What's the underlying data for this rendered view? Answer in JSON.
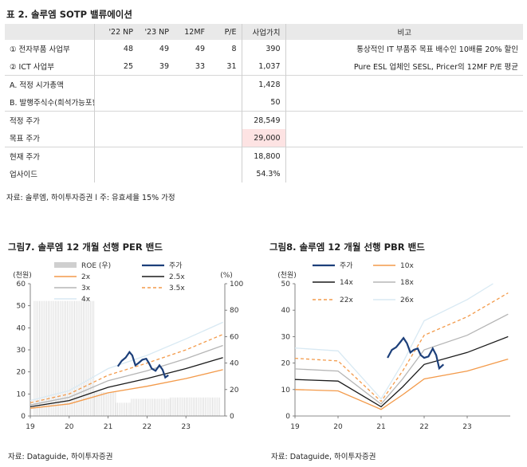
{
  "table": {
    "title": "표 2. 솔루엠 SOTP 밸류에이션",
    "headers": [
      "",
      "'22 NP",
      "'23 NP",
      "12MF",
      "P/E",
      "사업가치",
      "비고"
    ],
    "rows": [
      {
        "label": "① 전자부품 사업부",
        "np22": "48",
        "np23": "49",
        "mf12": "49",
        "pe": "8",
        "value": "390",
        "note": "통상적인 IT 부품주 목표 배수인 10배를 20% 할인"
      },
      {
        "label": "② ICT 사업부",
        "np22": "25",
        "np23": "39",
        "mf12": "33",
        "pe": "31",
        "value": "1,037",
        "note": "Pure ESL 업체인 SESL, Pricer의 12MF P/E 평균"
      },
      {
        "label": "A. 적정 시가총액",
        "np22": "",
        "np23": "",
        "mf12": "",
        "pe": "",
        "value": "1,428",
        "note": ""
      },
      {
        "label": "B. 발행주식수(희석가능포함)",
        "np22": "",
        "np23": "",
        "mf12": "",
        "pe": "",
        "value": "50",
        "note": ""
      },
      {
        "label": "적정 주가",
        "np22": "",
        "np23": "",
        "mf12": "",
        "pe": "",
        "value": "28,549",
        "note": ""
      },
      {
        "label": "목표 주가",
        "np22": "",
        "np23": "",
        "mf12": "",
        "pe": "",
        "value": "29,000",
        "note": ""
      },
      {
        "label": "현재 주가",
        "np22": "",
        "np23": "",
        "mf12": "",
        "pe": "",
        "value": "18,800",
        "note": ""
      },
      {
        "label": "업사이드",
        "np22": "",
        "np23": "",
        "mf12": "",
        "pe": "",
        "value": "54.3%",
        "note": ""
      }
    ],
    "source": "자료: 솔루엠, 하이투자증권 l 주: 유효세율 15% 가정"
  },
  "chart_data": [
    {
      "type": "line",
      "title": "그림7. 솔루엠 12 개월 선행 PER 밴드",
      "ylabel_left": "(천원)",
      "ylabel_right": "(%)",
      "ylim": [
        0,
        60
      ],
      "ylim_right": [
        0,
        100
      ],
      "yticks": [
        0,
        10,
        20,
        30,
        40,
        50,
        60
      ],
      "yticks_right": [
        0,
        20,
        40,
        60,
        80,
        100
      ],
      "xticks": [
        "19",
        "20",
        "21",
        "22",
        "23"
      ],
      "xlim": [
        19.0,
        24.0
      ],
      "legend": [
        "ROE (우)",
        "주가",
        "2x",
        "2.5x",
        "3x",
        "3.5x",
        "4x"
      ],
      "roe_bars": {
        "name": "ROE (우)",
        "segments": [
          {
            "x_start": 19.1,
            "x_end": 20.65,
            "value": 87
          },
          {
            "x_start": 20.65,
            "x_end": 21.2,
            "value": 18
          },
          {
            "x_start": 21.2,
            "x_end": 21.6,
            "value": 10
          },
          {
            "x_start": 21.6,
            "x_end": 22.6,
            "value": 13
          },
          {
            "x_start": 22.6,
            "x_end": 23.9,
            "value": 14
          }
        ]
      },
      "series": [
        {
          "name": "2x",
          "color": "#f39a4a",
          "dash": false,
          "points": [
            [
              19.0,
              3.5
            ],
            [
              20.0,
              5.5
            ],
            [
              21.0,
              10.5
            ],
            [
              22.0,
              13.5
            ],
            [
              23.0,
              17.0
            ],
            [
              23.95,
              21.0
            ]
          ]
        },
        {
          "name": "2.5x",
          "color": "#1a1a1a",
          "dash": false,
          "points": [
            [
              19.0,
              4.2
            ],
            [
              20.0,
              7.0
            ],
            [
              21.0,
              13.0
            ],
            [
              22.0,
              17.0
            ],
            [
              23.0,
              21.5
            ],
            [
              23.95,
              26.5
            ]
          ]
        },
        {
          "name": "3x",
          "color": "#b5b5b5",
          "dash": false,
          "points": [
            [
              19.0,
              5.0
            ],
            [
              20.0,
              8.5
            ],
            [
              21.0,
              16.0
            ],
            [
              22.0,
              20.5
            ],
            [
              23.0,
              26.0
            ],
            [
              23.95,
              32.0
            ]
          ]
        },
        {
          "name": "3.5x",
          "color": "#f39a4a",
          "dash": true,
          "points": [
            [
              19.0,
              6.0
            ],
            [
              20.0,
              10.0
            ],
            [
              21.0,
              18.5
            ],
            [
              22.0,
              24.0
            ],
            [
              23.0,
              30.0
            ],
            [
              23.95,
              37.0
            ]
          ]
        },
        {
          "name": "4x",
          "color": "#d8e9f3",
          "dash": false,
          "points": [
            [
              19.0,
              7.0
            ],
            [
              20.0,
              11.5
            ],
            [
              21.0,
              21.5
            ],
            [
              22.0,
              27.5
            ],
            [
              23.0,
              35.0
            ],
            [
              23.95,
              42.5
            ]
          ]
        },
        {
          "name": "주가",
          "color": "#1c3f7a",
          "dash": false,
          "width": 2.2,
          "points": [
            [
              21.25,
              22.5
            ],
            [
              21.35,
              25.0
            ],
            [
              21.45,
              26.5
            ],
            [
              21.55,
              29.0
            ],
            [
              21.62,
              27.5
            ],
            [
              21.7,
              23.0
            ],
            [
              21.78,
              24.0
            ],
            [
              21.88,
              25.5
            ],
            [
              21.98,
              26.0
            ],
            [
              22.05,
              24.0
            ],
            [
              22.12,
              21.5
            ],
            [
              22.22,
              20.5
            ],
            [
              22.32,
              23.0
            ],
            [
              22.4,
              21.0
            ],
            [
              22.47,
              17.5
            ],
            [
              22.55,
              18.5
            ]
          ]
        }
      ],
      "source": "자료: Dataguide, 하이투자증권"
    },
    {
      "type": "line",
      "title": "그림8. 솔루엠 12 개월 선행 PBR 밴드",
      "ylabel_left": "(천원)",
      "ylim": [
        0,
        50
      ],
      "yticks": [
        0,
        10,
        20,
        30,
        40,
        50
      ],
      "xticks": [
        "19",
        "20",
        "21",
        "22",
        "23"
      ],
      "xlim": [
        19.0,
        24.0
      ],
      "legend": [
        "주가",
        "10x",
        "14x",
        "18x",
        "22x",
        "26x"
      ],
      "series": [
        {
          "name": "10x",
          "color": "#f39a4a",
          "dash": false,
          "points": [
            [
              19.0,
              10.0
            ],
            [
              20.0,
              9.5
            ],
            [
              21.0,
              2.5
            ],
            [
              21.5,
              8.0
            ],
            [
              22.0,
              14.0
            ],
            [
              23.0,
              17.0
            ],
            [
              23.95,
              21.5
            ]
          ]
        },
        {
          "name": "14x",
          "color": "#1a1a1a",
          "dash": false,
          "points": [
            [
              19.0,
              13.8
            ],
            [
              20.0,
              13.2
            ],
            [
              21.0,
              3.5
            ],
            [
              21.5,
              11.0
            ],
            [
              22.0,
              19.5
            ],
            [
              23.0,
              24.0
            ],
            [
              23.95,
              30.0
            ]
          ]
        },
        {
          "name": "18x",
          "color": "#b5b5b5",
          "dash": false,
          "points": [
            [
              19.0,
              17.8
            ],
            [
              20.0,
              17.0
            ],
            [
              21.0,
              4.5
            ],
            [
              21.5,
              14.0
            ],
            [
              22.0,
              25.0
            ],
            [
              23.0,
              30.5
            ],
            [
              23.95,
              38.5
            ]
          ]
        },
        {
          "name": "22x",
          "color": "#f39a4a",
          "dash": true,
          "points": [
            [
              19.0,
              21.8
            ],
            [
              20.0,
              20.8
            ],
            [
              21.0,
              5.5
            ],
            [
              21.5,
              17.0
            ],
            [
              22.0,
              30.5
            ],
            [
              23.0,
              37.5
            ],
            [
              23.95,
              46.5
            ]
          ]
        },
        {
          "name": "26x",
          "color": "#d8e9f3",
          "dash": false,
          "points": [
            [
              19.0,
              25.7
            ],
            [
              20.0,
              24.6
            ],
            [
              21.0,
              6.5
            ],
            [
              21.5,
              20.0
            ],
            [
              22.0,
              36.0
            ],
            [
              23.0,
              44.0
            ],
            [
              23.6,
              50.0
            ]
          ]
        },
        {
          "name": "주가",
          "color": "#1c3f7a",
          "dash": false,
          "width": 2.2,
          "points": [
            [
              21.15,
              22.0
            ],
            [
              21.25,
              25.0
            ],
            [
              21.35,
              26.0
            ],
            [
              21.45,
              28.0
            ],
            [
              21.52,
              29.5
            ],
            [
              21.6,
              27.5
            ],
            [
              21.68,
              24.0
            ],
            [
              21.76,
              25.0
            ],
            [
              21.85,
              25.5
            ],
            [
              21.92,
              23.0
            ],
            [
              22.0,
              22.0
            ],
            [
              22.1,
              22.5
            ],
            [
              22.2,
              25.5
            ],
            [
              22.28,
              23.0
            ],
            [
              22.35,
              18.0
            ],
            [
              22.45,
              19.5
            ]
          ]
        }
      ],
      "source": "자료: Dataguide, 하이투자증권"
    }
  ]
}
